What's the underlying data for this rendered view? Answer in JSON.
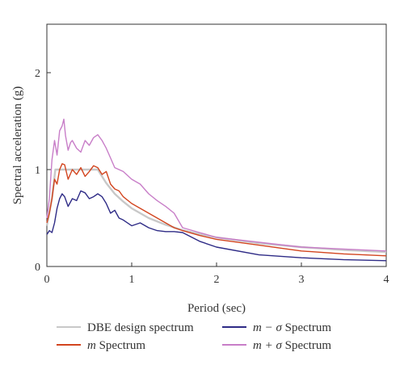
{
  "chart_data": {
    "type": "line",
    "xlabel": "Period (sec)",
    "ylabel": "Spectral acceleration (g)",
    "xlim": [
      0,
      4
    ],
    "ylim": [
      0,
      2.5
    ],
    "x_ticks": [
      "0",
      "1",
      "2",
      "3",
      "4"
    ],
    "y_ticks": [
      "0",
      "1",
      "2"
    ],
    "legend_position": "bottom",
    "series": [
      {
        "name": "DBE design spectrum",
        "name_parts": [
          "",
          "DBE design spectrum"
        ],
        "color": "#c8c8c8",
        "x": [
          0,
          0.06,
          0.1,
          0.2,
          0.3,
          0.4,
          0.5,
          0.6,
          0.7,
          0.8,
          0.9,
          1.0,
          1.2,
          1.4,
          1.6,
          1.8,
          2.0,
          2.5,
          3.0,
          3.5,
          4.0
        ],
        "y": [
          0.42,
          0.7,
          1.0,
          1.0,
          1.0,
          1.0,
          1.0,
          1.0,
          0.86,
          0.75,
          0.67,
          0.6,
          0.5,
          0.43,
          0.375,
          0.335,
          0.3,
          0.24,
          0.2,
          0.17,
          0.15
        ]
      },
      {
        "name": "m Spectrum",
        "name_parts": [
          "m",
          " Spectrum"
        ],
        "color": "#d2441e",
        "x": [
          0,
          0.03,
          0.06,
          0.09,
          0.12,
          0.15,
          0.18,
          0.21,
          0.25,
          0.3,
          0.35,
          0.4,
          0.45,
          0.5,
          0.55,
          0.6,
          0.65,
          0.7,
          0.75,
          0.8,
          0.85,
          0.9,
          1.0,
          1.1,
          1.2,
          1.3,
          1.4,
          1.5,
          1.6,
          1.8,
          2.0,
          2.5,
          3.0,
          3.5,
          4.0
        ],
        "y": [
          0.45,
          0.55,
          0.7,
          0.9,
          0.85,
          1.0,
          1.06,
          1.05,
          0.9,
          1.0,
          0.95,
          1.02,
          0.93,
          0.98,
          1.04,
          1.02,
          0.95,
          0.98,
          0.85,
          0.8,
          0.78,
          0.72,
          0.65,
          0.6,
          0.55,
          0.5,
          0.45,
          0.4,
          0.37,
          0.32,
          0.28,
          0.22,
          0.16,
          0.13,
          0.11
        ]
      },
      {
        "name": "m − σ Spectrum",
        "name_parts": [
          "m − σ",
          " Spectrum"
        ],
        "color": "#2e2b86",
        "x": [
          0,
          0.03,
          0.06,
          0.09,
          0.12,
          0.15,
          0.18,
          0.21,
          0.25,
          0.3,
          0.35,
          0.4,
          0.45,
          0.5,
          0.55,
          0.6,
          0.65,
          0.7,
          0.75,
          0.8,
          0.85,
          0.9,
          1.0,
          1.1,
          1.2,
          1.3,
          1.4,
          1.5,
          1.6,
          1.8,
          2.0,
          2.5,
          3.0,
          3.5,
          4.0
        ],
        "y": [
          0.33,
          0.37,
          0.35,
          0.45,
          0.6,
          0.7,
          0.75,
          0.72,
          0.62,
          0.7,
          0.68,
          0.78,
          0.76,
          0.7,
          0.72,
          0.75,
          0.72,
          0.65,
          0.55,
          0.58,
          0.5,
          0.48,
          0.42,
          0.45,
          0.4,
          0.37,
          0.36,
          0.36,
          0.35,
          0.26,
          0.2,
          0.12,
          0.09,
          0.07,
          0.06
        ]
      },
      {
        "name": "m + σ Spectrum",
        "name_parts": [
          "m + σ",
          " Spectrum"
        ],
        "color": "#c87ec8",
        "x": [
          0,
          0.03,
          0.06,
          0.09,
          0.12,
          0.15,
          0.18,
          0.2,
          0.22,
          0.25,
          0.28,
          0.3,
          0.35,
          0.4,
          0.45,
          0.5,
          0.55,
          0.6,
          0.65,
          0.7,
          0.75,
          0.8,
          0.85,
          0.9,
          1.0,
          1.1,
          1.2,
          1.3,
          1.4,
          1.5,
          1.6,
          1.8,
          2.0,
          2.5,
          3.0,
          3.5,
          4.0
        ],
        "y": [
          0.5,
          0.7,
          1.1,
          1.3,
          1.15,
          1.4,
          1.45,
          1.52,
          1.35,
          1.2,
          1.28,
          1.3,
          1.22,
          1.18,
          1.3,
          1.25,
          1.33,
          1.36,
          1.3,
          1.22,
          1.12,
          1.02,
          1.0,
          0.98,
          0.9,
          0.85,
          0.75,
          0.68,
          0.62,
          0.55,
          0.4,
          0.35,
          0.3,
          0.25,
          0.2,
          0.18,
          0.16
        ]
      }
    ]
  }
}
